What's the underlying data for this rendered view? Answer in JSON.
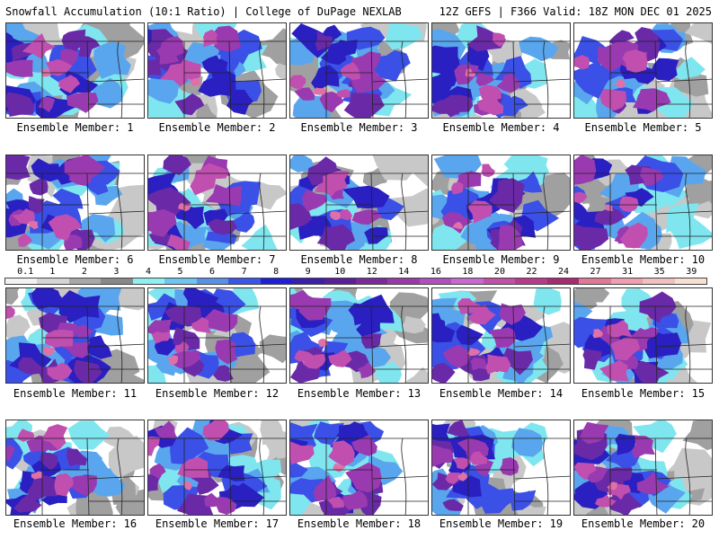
{
  "header": {
    "left": "Snowfall Accumulation (10:1 Ratio) | College of DuPage NEXLAB",
    "right": "12Z GEFS | F366 Valid: 18Z MON DEC 01 2025"
  },
  "members": [
    {
      "label": "Ensemble Member: 1"
    },
    {
      "label": "Ensemble Member: 2"
    },
    {
      "label": "Ensemble Member: 3"
    },
    {
      "label": "Ensemble Member: 4"
    },
    {
      "label": "Ensemble Member: 5"
    },
    {
      "label": "Ensemble Member: 6"
    },
    {
      "label": "Ensemble Member: 7"
    },
    {
      "label": "Ensemble Member: 8"
    },
    {
      "label": "Ensemble Member: 9"
    },
    {
      "label": "Ensemble Member: 10"
    },
    {
      "label": "Ensemble Member: 11"
    },
    {
      "label": "Ensemble Member: 12"
    },
    {
      "label": "Ensemble Member: 13"
    },
    {
      "label": "Ensemble Member: 14"
    },
    {
      "label": "Ensemble Member: 15"
    },
    {
      "label": "Ensemble Member: 16"
    },
    {
      "label": "Ensemble Member: 17"
    },
    {
      "label": "Ensemble Member: 18"
    },
    {
      "label": "Ensemble Member: 19"
    },
    {
      "label": "Ensemble Member: 20"
    }
  ],
  "scale": {
    "labels": [
      "0.1",
      "1",
      "2",
      "3",
      "4",
      "5",
      "6",
      "7",
      "8",
      "9",
      "10",
      "12",
      "14",
      "16",
      "18",
      "20",
      "22",
      "24",
      "27",
      "31",
      "35",
      "39"
    ],
    "colors": [
      "#f2f2f2",
      "#d4d4d4",
      "#a8a8a8",
      "#888888",
      "#8ff0f0",
      "#6fc3ef",
      "#5a8fe8",
      "#3a56e8",
      "#1f1fd8",
      "#3a1fa8",
      "#5a1f98",
      "#7a2a9a",
      "#9a3aa8",
      "#b04fc0",
      "#c868d0",
      "#c050a8",
      "#b83a8c",
      "#a82a70",
      "#e07898",
      "#eea0b0",
      "#f0c0c0",
      "#f8e0d0"
    ]
  }
}
